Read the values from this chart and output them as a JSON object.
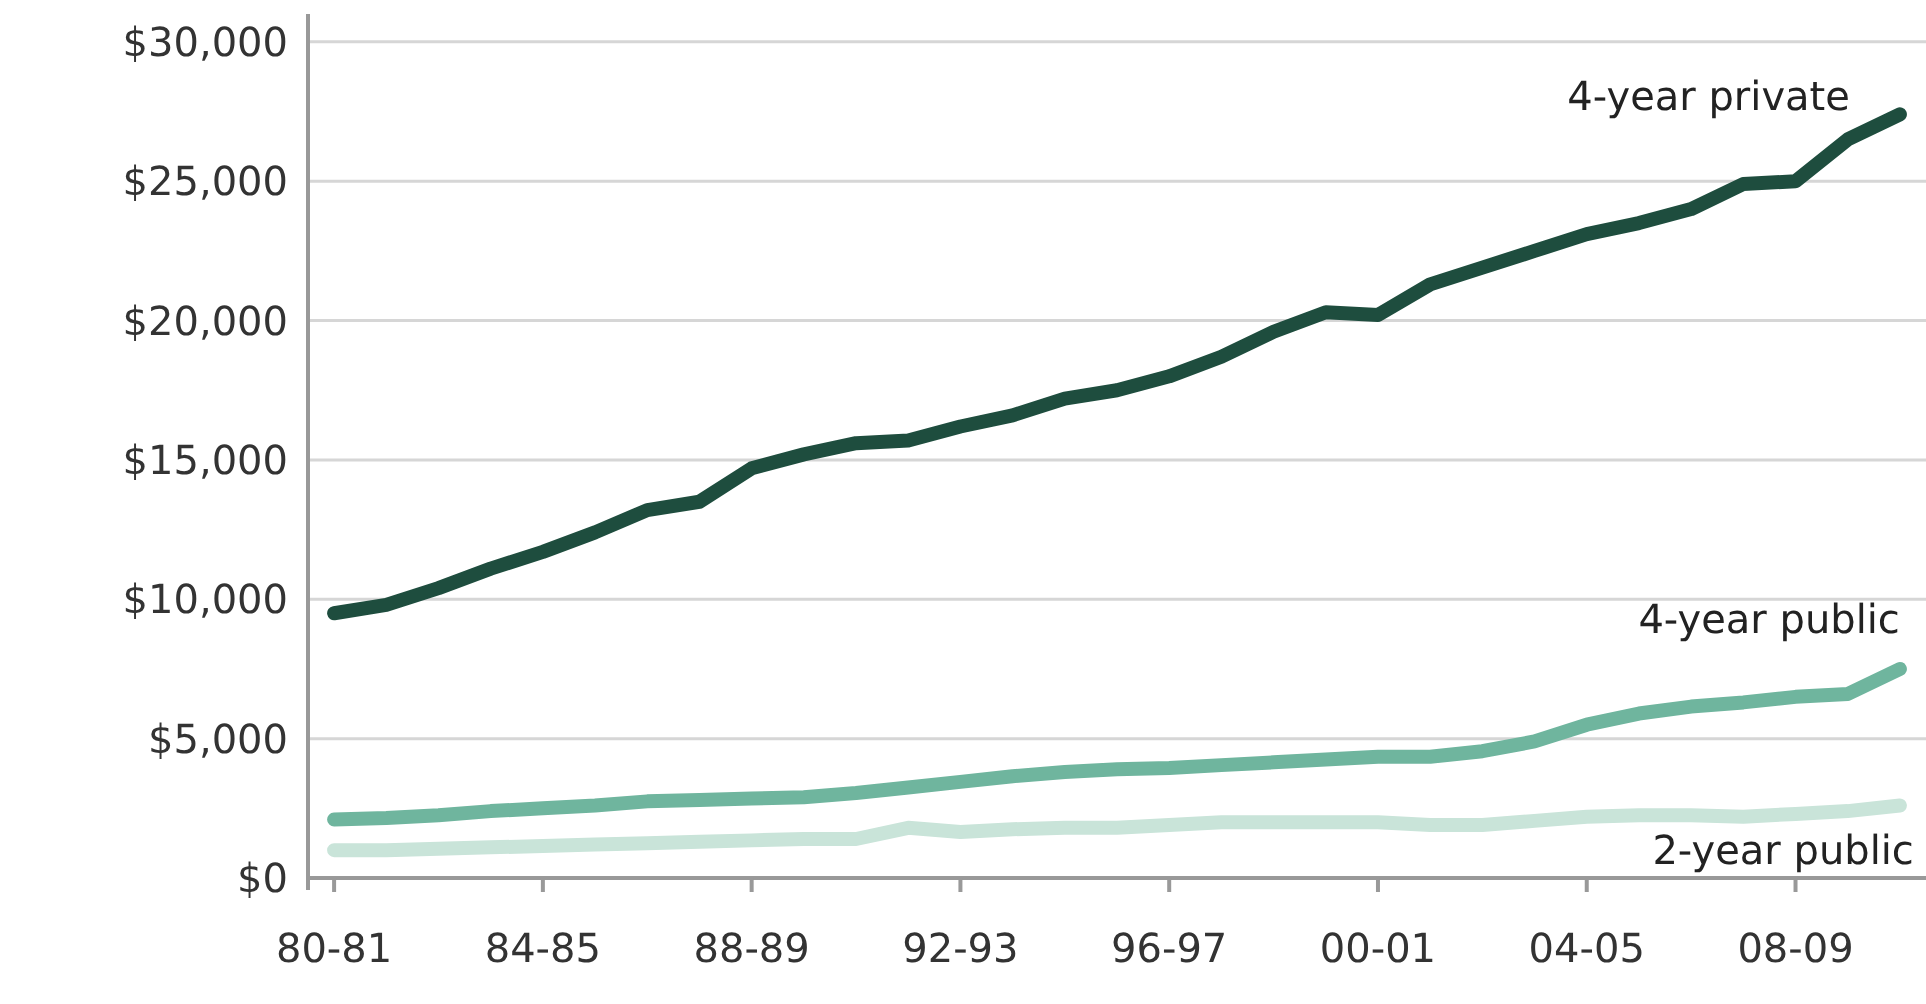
{
  "chart_data": {
    "type": "line",
    "categories": [
      "80-81",
      null,
      null,
      null,
      "84-85",
      null,
      null,
      null,
      "88-89",
      null,
      null,
      null,
      "92-93",
      null,
      null,
      null,
      "96-97",
      null,
      null,
      null,
      "00-01",
      null,
      null,
      null,
      "04-05",
      null,
      null,
      null,
      "08-09",
      null,
      null
    ],
    "series": [
      {
        "name": "4-year private",
        "color": "#1e4d3e",
        "values": [
          9500,
          9800,
          10400,
          11100,
          11700,
          12400,
          13200,
          13500,
          14700,
          15200,
          15600,
          15700,
          16200,
          16600,
          17200,
          17500,
          18000,
          18700,
          19600,
          20300,
          20200,
          21300,
          21900,
          22500,
          23100,
          23500,
          24000,
          24900,
          25000,
          26500,
          27400
        ]
      },
      {
        "name": "4-year public",
        "color": "#6fb59e",
        "values": [
          2100,
          2150,
          2250,
          2400,
          2500,
          2600,
          2750,
          2800,
          2850,
          2900,
          3050,
          3250,
          3450,
          3650,
          3800,
          3900,
          3950,
          4050,
          4150,
          4250,
          4350,
          4350,
          4550,
          4900,
          5500,
          5900,
          6150,
          6300,
          6500,
          6600,
          7500
        ]
      },
      {
        "name": "2-year public",
        "color": "#c9e4d9",
        "values": [
          1000,
          1000,
          1050,
          1100,
          1150,
          1200,
          1250,
          1300,
          1350,
          1400,
          1400,
          1800,
          1650,
          1750,
          1800,
          1800,
          1900,
          2000,
          2000,
          2000,
          2000,
          1900,
          1900,
          2050,
          2200,
          2250,
          2250,
          2200,
          2300,
          2400,
          2600
        ]
      }
    ],
    "ylim": [
      0,
      31000
    ],
    "yticks": [
      {
        "value": 0,
        "label": "$0"
      },
      {
        "value": 5000,
        "label": "$5,000"
      },
      {
        "value": 10000,
        "label": "$10,000"
      },
      {
        "value": 15000,
        "label": "$15,000"
      },
      {
        "value": 20000,
        "label": "$20,000"
      },
      {
        "value": 25000,
        "label": "$25,000"
      },
      {
        "value": 30000,
        "label": "$30,000"
      }
    ],
    "grid": "y",
    "legend": false,
    "marker": "none",
    "line_style": "solid"
  }
}
